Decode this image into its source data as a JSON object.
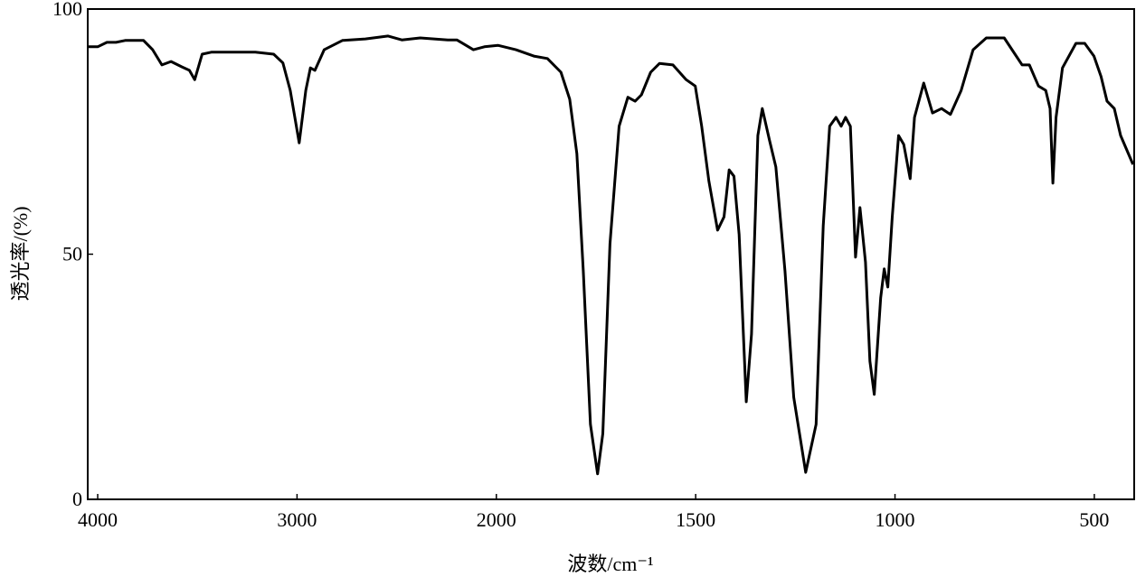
{
  "chart_data": {
    "type": "line",
    "x_label": "波数/cm⁻¹",
    "y_label": "透光率/(%)",
    "x_scale_break": 2000,
    "xlim": [
      4050,
      400
    ],
    "ylim": [
      0,
      100
    ],
    "xticks": [
      4000,
      3000,
      2000,
      1500,
      1000,
      500
    ],
    "yticks": [
      0,
      50,
      100
    ],
    "grid": false,
    "series": [
      {
        "color": "#000000",
        "x": [
          4050,
          4000,
          3954,
          3908,
          3862,
          3770,
          3724,
          3678,
          3632,
          3577,
          3540,
          3513,
          3476,
          3430,
          3209,
          3117,
          3071,
          3034,
          2989,
          2956,
          2933,
          2910,
          2864,
          2772,
          2657,
          2543,
          2474,
          2382,
          2244,
          2198,
          2115,
          2060,
          1996,
          1951,
          1906,
          1872,
          1838,
          1816,
          1798,
          1782,
          1764,
          1746,
          1733,
          1715,
          1692,
          1670,
          1652,
          1636,
          1613,
          1591,
          1557,
          1524,
          1501,
          1485,
          1467,
          1445,
          1429,
          1416,
          1404,
          1391,
          1373,
          1360,
          1344,
          1333,
          1315,
          1299,
          1276,
          1254,
          1224,
          1198,
          1180,
          1164,
          1148,
          1135,
          1124,
          1112,
          1099,
          1088,
          1074,
          1063,
          1052,
          1036,
          1027,
          1018,
          1007,
          991,
          978,
          962,
          951,
          928,
          906,
          883,
          861,
          834,
          804,
          771,
          726,
          699,
          681,
          663,
          640,
          622,
          611,
          604,
          596,
          580,
          546,
          524,
          501,
          483,
          468,
          450,
          434,
          403
        ],
        "values": [
          92.3,
          92.3,
          93.2,
          93.2,
          93.6,
          93.6,
          91.7,
          88.6,
          89.3,
          88.2,
          87.5,
          85.6,
          90.8,
          91.2,
          91.2,
          90.8,
          89.0,
          83.4,
          72.7,
          83.4,
          88.0,
          87.5,
          91.7,
          93.6,
          93.9,
          94.5,
          93.7,
          94.1,
          93.7,
          93.7,
          91.7,
          92.3,
          92.6,
          91.7,
          90.4,
          89.9,
          87.1,
          81.6,
          70.5,
          46.6,
          15.3,
          5.2,
          13.4,
          52.1,
          76.1,
          82.0,
          81.2,
          82.5,
          87.1,
          88.9,
          88.6,
          85.6,
          84.3,
          76.1,
          65.0,
          54.9,
          57.6,
          67.2,
          65.9,
          54.0,
          19.9,
          33.7,
          74.2,
          79.7,
          73.3,
          67.8,
          46.6,
          20.8,
          5.5,
          15.3,
          55.8,
          76.1,
          77.9,
          76.1,
          77.9,
          76.1,
          49.4,
          59.5,
          48.4,
          28.2,
          21.4,
          41.1,
          47.0,
          43.3,
          57.6,
          74.2,
          72.4,
          65.4,
          77.9,
          84.9,
          78.8,
          79.7,
          78.5,
          83.4,
          91.7,
          94.1,
          94.1,
          90.8,
          88.6,
          88.6,
          84.3,
          83.4,
          79.7,
          64.5,
          77.9,
          88.0,
          93.0,
          93.0,
          90.4,
          86.2,
          81.2,
          79.7,
          74.2,
          68.3
        ]
      }
    ]
  }
}
